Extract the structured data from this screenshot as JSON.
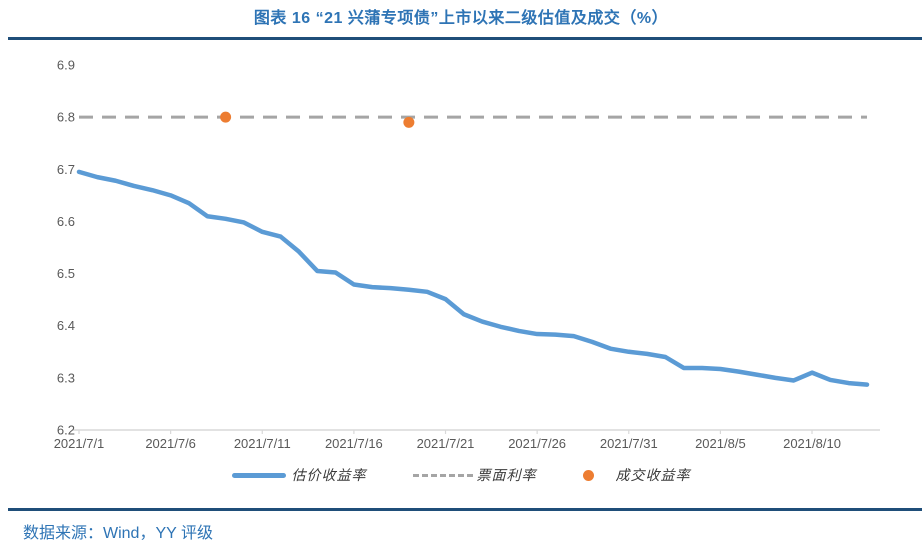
{
  "header": {
    "title": "图表 16 “21 兴蒲专项债”上市以来二级估值及成交（%）"
  },
  "footer": {
    "source": "数据来源：Wind，YY 评级"
  },
  "colors": {
    "title_blue": "#2E74B5",
    "rule_navy": "#1F4E79",
    "line_blue": "#5B9BD5",
    "marker_orange": "#ED7D31",
    "dash_gray": "#A5A5A5",
    "axis_text_gray": "#595959",
    "axis_line_gray": "#D9D9D9",
    "legend_text": "#3A3A3A"
  },
  "chart_data": {
    "type": "line",
    "title": "图表 16 “21 兴蒲专项债”上市以来二级估值及成交（%）",
    "xlabel": "",
    "ylabel": "",
    "ylim": [
      6.2,
      6.9
    ],
    "y_ticks": [
      6.2,
      6.3,
      6.4,
      6.5,
      6.6,
      6.7,
      6.8,
      6.9
    ],
    "grid": false,
    "legend_position": "bottom",
    "x": [
      "2021/7/1",
      "2021/7/2",
      "2021/7/3",
      "2021/7/4",
      "2021/7/5",
      "2021/7/6",
      "2021/7/7",
      "2021/7/8",
      "2021/7/9",
      "2021/7/10",
      "2021/7/11",
      "2021/7/12",
      "2021/7/13",
      "2021/7/14",
      "2021/7/15",
      "2021/7/16",
      "2021/7/17",
      "2021/7/18",
      "2021/7/19",
      "2021/7/20",
      "2021/7/21",
      "2021/7/22",
      "2021/7/23",
      "2021/7/24",
      "2021/7/25",
      "2021/7/26",
      "2021/7/27",
      "2021/7/28",
      "2021/7/29",
      "2021/7/30",
      "2021/7/31",
      "2021/8/1",
      "2021/8/2",
      "2021/8/3",
      "2021/8/4",
      "2021/8/5",
      "2021/8/6",
      "2021/8/7",
      "2021/8/8",
      "2021/8/9",
      "2021/8/10",
      "2021/8/11",
      "2021/8/12",
      "2021/8/13"
    ],
    "x_tick_labels": [
      "2021/7/1",
      "2021/7/6",
      "2021/7/11",
      "2021/7/16",
      "2021/7/21",
      "2021/7/26",
      "2021/7/31",
      "2021/8/5",
      "2021/8/10"
    ],
    "series": [
      {
        "name": "估价收益率",
        "type": "line",
        "color": "#5B9BD5",
        "values": [
          6.695,
          6.685,
          6.678,
          6.668,
          6.66,
          6.65,
          6.635,
          6.61,
          6.605,
          6.598,
          6.58,
          6.571,
          6.542,
          6.505,
          6.502,
          6.479,
          6.474,
          6.472,
          6.469,
          6.465,
          6.451,
          6.422,
          6.408,
          6.398,
          6.39,
          6.384,
          6.383,
          6.38,
          6.369,
          6.356,
          6.35,
          6.346,
          6.34,
          6.319,
          6.319,
          6.317,
          6.312,
          6.306,
          6.3,
          6.295,
          6.31,
          6.296,
          6.29,
          6.287
        ]
      },
      {
        "name": "票面利率",
        "type": "dashed-horizontal-line",
        "color": "#A5A5A5",
        "value": 6.8
      },
      {
        "name": "成交收益率",
        "type": "scatter",
        "color": "#ED7D31",
        "points": [
          {
            "x": "2021/7/9",
            "y": 6.8
          },
          {
            "x": "2021/7/19",
            "y": 6.79
          }
        ]
      }
    ]
  }
}
